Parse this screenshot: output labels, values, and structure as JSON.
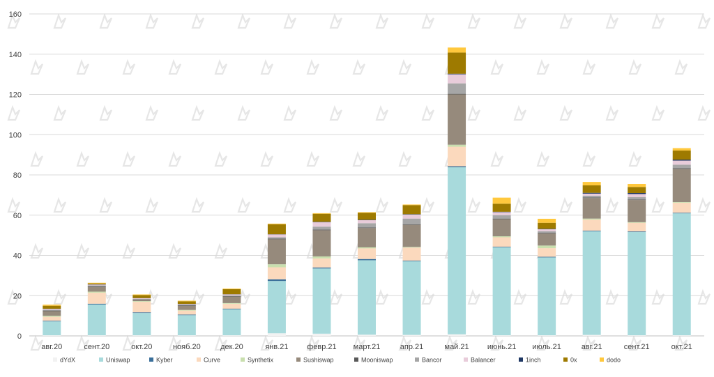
{
  "chart_data": {
    "type": "bar",
    "stacked": true,
    "title": "",
    "xlabel": "",
    "ylabel": "",
    "ylim": [
      0,
      160
    ],
    "yticks": [
      0,
      20,
      40,
      60,
      80,
      100,
      120,
      140,
      160
    ],
    "grid": true,
    "legend_position": "bottom",
    "categories": [
      "авг.20",
      "сент.20",
      "окт.20",
      "нояб.20",
      "дек.20",
      "янв.21",
      "февр.21",
      "март.21",
      "апр.21",
      "май.21",
      "июнь.21",
      "июль.21",
      "авг.21",
      "сент.21",
      "окт.21"
    ],
    "series": [
      {
        "name": "dYdX",
        "color": "#f2f2f2",
        "values": [
          0.3,
          0.3,
          0.3,
          0.3,
          0.3,
          1.3,
          1.1,
          0.6,
          0.5,
          0.8,
          0.3,
          0.3,
          0.5,
          0.3,
          0.3
        ]
      },
      {
        "name": "Uniswap",
        "color": "#a8dadc",
        "values": [
          6.9,
          15.3,
          11.1,
          10.0,
          12.9,
          26.0,
          32.4,
          37.0,
          36.6,
          83.0,
          43.7,
          38.7,
          51.5,
          51.3,
          60.6
        ]
      },
      {
        "name": "Kyber",
        "color": "#3a6f9a",
        "values": [
          0.3,
          0.4,
          0.3,
          0.3,
          0.3,
          0.8,
          0.5,
          0.6,
          0.3,
          0.5,
          0.3,
          0.3,
          0.3,
          0.3,
          0.3
        ]
      },
      {
        "name": "Curve",
        "color": "#fbd9bd",
        "values": [
          2.0,
          5.5,
          5.3,
          2.0,
          2.5,
          6.0,
          4.5,
          5.3,
          6.5,
          9.7,
          4.7,
          4.3,
          5.5,
          4.3,
          5.0
        ]
      },
      {
        "name": "Synthetix",
        "color": "#c9dfae",
        "values": [
          0.5,
          0.5,
          0.3,
          0.3,
          0.3,
          1.5,
          1.0,
          0.5,
          0.3,
          1.0,
          0.5,
          1.3,
          0.5,
          0.3,
          0.3
        ]
      },
      {
        "name": "Sushiswap",
        "color": "#968a7c",
        "values": [
          2.3,
          2.3,
          0.5,
          2.0,
          3.2,
          12.4,
          13.0,
          9.6,
          11.0,
          25.0,
          8.5,
          6.0,
          10.2,
          11.0,
          16.5
        ]
      },
      {
        "name": "Mooniswap",
        "color": "#595959",
        "values": [
          0.3,
          0.3,
          0.3,
          0.3,
          0.3,
          0.3,
          0.3,
          0.3,
          0.3,
          0.3,
          0.3,
          0.3,
          0.3,
          0.3,
          0.3
        ]
      },
      {
        "name": "Bancor",
        "color": "#a6a6a6",
        "values": [
          0.3,
          0.5,
          0.3,
          0.3,
          0.3,
          0.7,
          1.5,
          2.1,
          2.8,
          5.2,
          1.7,
          0.8,
          0.9,
          1.2,
          1.8
        ]
      },
      {
        "name": "Balancer",
        "color": "#e8ccda",
        "values": [
          0.5,
          0.4,
          0.3,
          0.3,
          0.5,
          1.4,
          2.2,
          1.5,
          2.0,
          4.5,
          1.5,
          1.0,
          1.0,
          1.5,
          2.0
        ]
      },
      {
        "name": "1inch",
        "color": "#1f3864",
        "values": [
          0.1,
          0.1,
          0.1,
          0.1,
          0.1,
          0.1,
          0.2,
          0.2,
          0.2,
          0.3,
          0.2,
          0.2,
          0.4,
          0.5,
          0.5
        ]
      },
      {
        "name": "0x",
        "color": "#9e7a00",
        "values": [
          1.5,
          0.5,
          1.5,
          1.3,
          2.5,
          5.0,
          4.0,
          3.5,
          4.5,
          10.5,
          4.0,
          3.0,
          3.7,
          3.0,
          4.5
        ]
      },
      {
        "name": "dodo",
        "color": "#ffc83d",
        "values": [
          0.5,
          0.3,
          0.3,
          0.3,
          0.3,
          0.3,
          0.3,
          0.3,
          0.3,
          2.5,
          3.0,
          2.0,
          1.7,
          1.5,
          1.2
        ]
      }
    ]
  }
}
